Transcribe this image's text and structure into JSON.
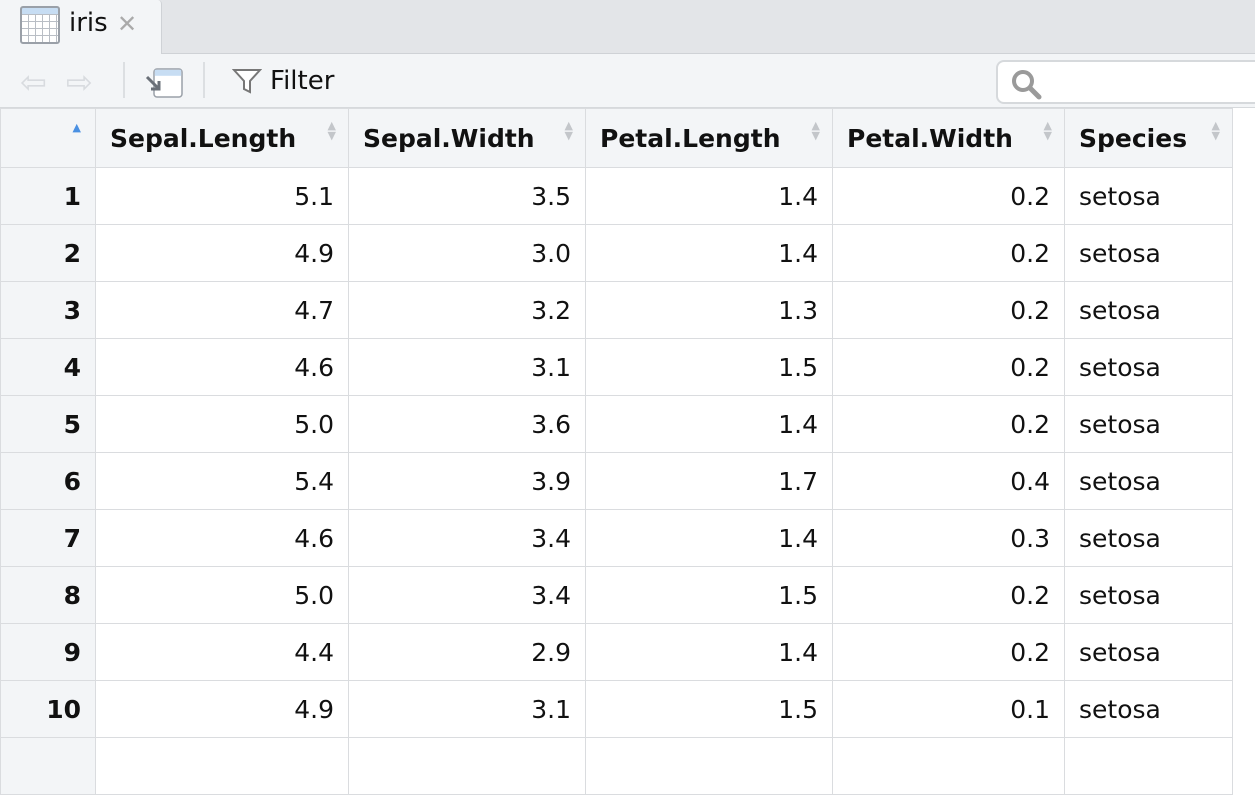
{
  "tab": {
    "title": "iris",
    "icon": "table-icon"
  },
  "toolbar": {
    "filter_label": "Filter",
    "search_placeholder": ""
  },
  "table": {
    "columns": [
      "Sepal.Length",
      "Sepal.Width",
      "Petal.Length",
      "Petal.Width",
      "Species"
    ],
    "sort": {
      "column": "index",
      "direction": "ascending"
    },
    "rows": [
      [
        "1",
        "5.1",
        "3.5",
        "1.4",
        "0.2",
        "setosa"
      ],
      [
        "2",
        "4.9",
        "3.0",
        "1.4",
        "0.2",
        "setosa"
      ],
      [
        "3",
        "4.7",
        "3.2",
        "1.3",
        "0.2",
        "setosa"
      ],
      [
        "4",
        "4.6",
        "3.1",
        "1.5",
        "0.2",
        "setosa"
      ],
      [
        "5",
        "5.0",
        "3.6",
        "1.4",
        "0.2",
        "setosa"
      ],
      [
        "6",
        "5.4",
        "3.9",
        "1.7",
        "0.4",
        "setosa"
      ],
      [
        "7",
        "4.6",
        "3.4",
        "1.4",
        "0.3",
        "setosa"
      ],
      [
        "8",
        "5.0",
        "3.4",
        "1.5",
        "0.2",
        "setosa"
      ],
      [
        "9",
        "4.4",
        "2.9",
        "1.4",
        "0.2",
        "setosa"
      ],
      [
        "10",
        "4.9",
        "3.1",
        "1.5",
        "0.1",
        "setosa"
      ]
    ]
  }
}
